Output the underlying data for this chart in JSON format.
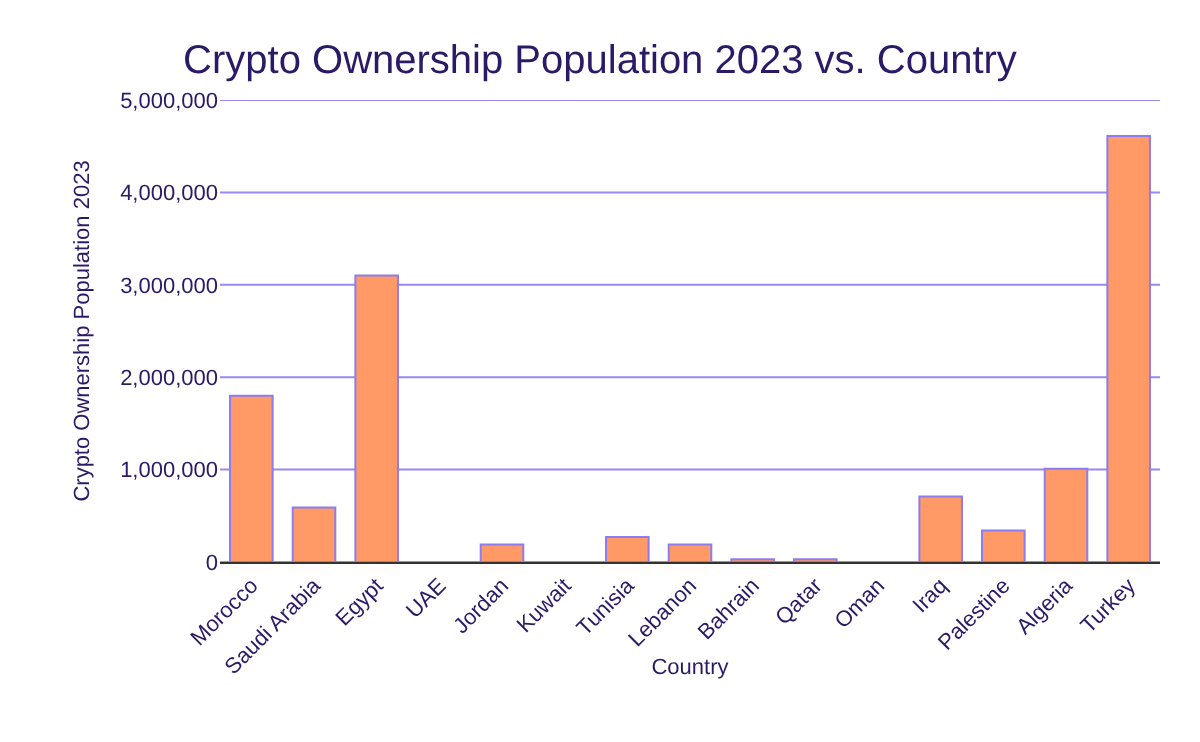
{
  "chart_data": {
    "type": "bar",
    "title": "Crypto Ownership Population 2023 vs. Country",
    "xlabel": "Country",
    "ylabel": "Crypto Ownership Population 2023",
    "categories": [
      "Morocco",
      "Saudi Arabia",
      "Egypt",
      "UAE",
      "Jordan",
      "Kuwait",
      "Tunisia",
      "Lebanon",
      "Bahrain",
      "Qatar",
      "Oman",
      "Iraq",
      "Palestine",
      "Algeria",
      "Turkey"
    ],
    "values": [
      1800000,
      590000,
      3100000,
      0,
      190000,
      0,
      270000,
      190000,
      30000,
      30000,
      0,
      710000,
      340000,
      1010000,
      4610000
    ],
    "color": "#ff9966",
    "ylim": [
      0,
      5000000
    ],
    "yticks": [
      {
        "value": 0,
        "label": "0"
      },
      {
        "value": 1000000,
        "label": "1,000,000"
      },
      {
        "value": 2000000,
        "label": "2,000,000"
      },
      {
        "value": 3000000,
        "label": "3,000,000"
      },
      {
        "value": 4000000,
        "label": "4,000,000"
      },
      {
        "value": 5000000,
        "label": "5,000,000"
      }
    ],
    "grid": "y"
  }
}
